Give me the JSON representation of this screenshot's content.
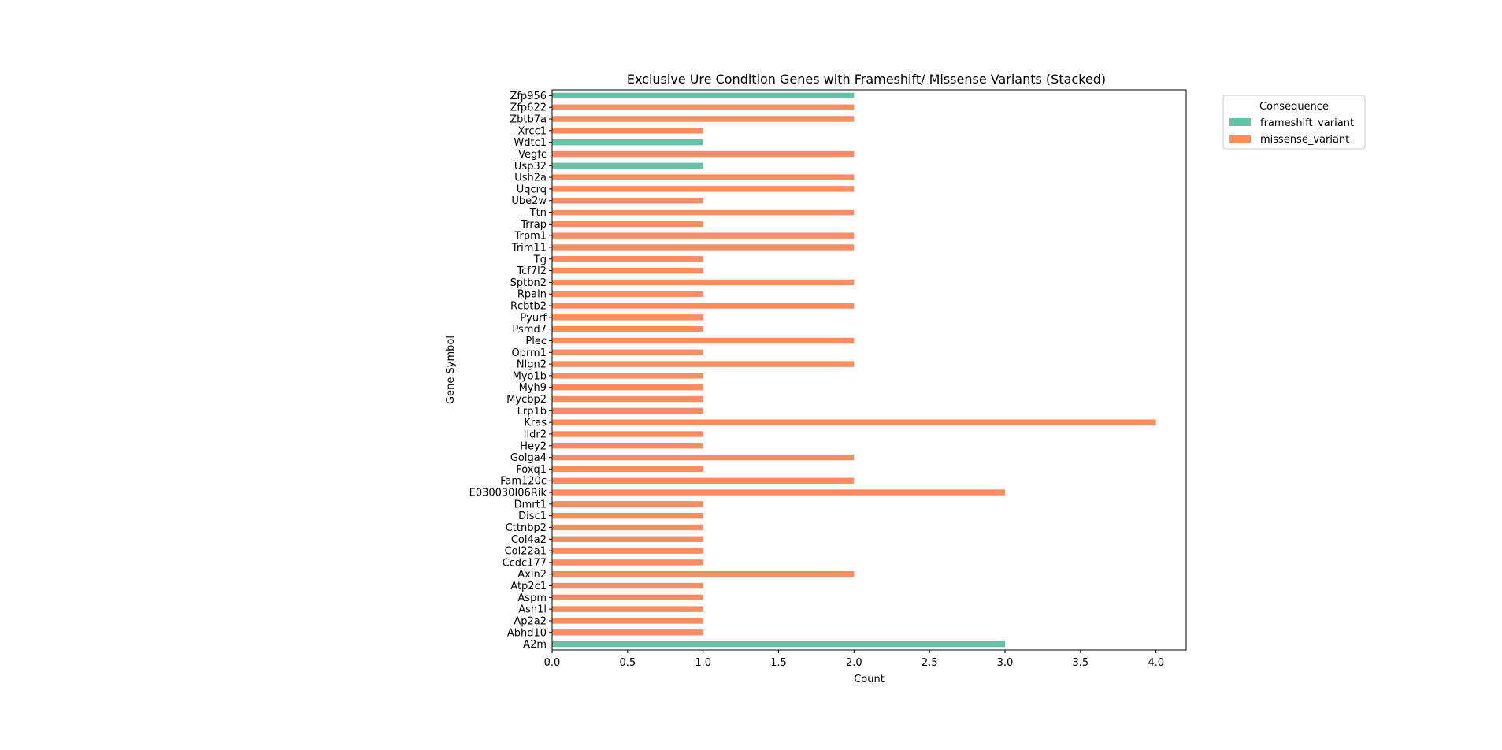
{
  "chart_data": {
    "type": "bar",
    "orientation": "horizontal",
    "stacked": true,
    "title": "Exclusive Ure Condition Genes with Frameshift/ Missense Variants (Stacked)",
    "xlabel": "Count",
    "ylabel": "Gene Symbol",
    "xlim": [
      0,
      4.2
    ],
    "xticks": [
      0.0,
      0.5,
      1.0,
      1.5,
      2.0,
      2.5,
      3.0,
      3.5,
      4.0
    ],
    "xtick_labels": [
      "0.0",
      "0.5",
      "1.0",
      "1.5",
      "2.0",
      "2.5",
      "3.0",
      "3.5",
      "4.0"
    ],
    "grid": false,
    "legend": {
      "title": "Consequence",
      "placement": "upper-right-outside"
    },
    "categories": [
      "A2m",
      "Abhd10",
      "Ap2a2",
      "Ash1l",
      "Aspm",
      "Atp2c1",
      "Axin2",
      "Ccdc177",
      "Col22a1",
      "Col4a2",
      "Cttnbp2",
      "Disc1",
      "Dmrt1",
      "E030030I06Rik",
      "Fam120c",
      "Foxq1",
      "Golga4",
      "Hey2",
      "Ildr2",
      "Kras",
      "Lrp1b",
      "Mycbp2",
      "Myh9",
      "Myo1b",
      "Nlgn2",
      "Oprm1",
      "Plec",
      "Psmd7",
      "Pyurf",
      "Rcbtb2",
      "Rpain",
      "Sptbn2",
      "Tcf7l2",
      "Tg",
      "Trim11",
      "Trpm1",
      "Trrap",
      "Ttn",
      "Ube2w",
      "Uqcrq",
      "Ush2a",
      "Usp32",
      "Vegfc",
      "Wdtc1",
      "Xrcc1",
      "Zbtb7a",
      "Zfp622",
      "Zfp956"
    ],
    "series": [
      {
        "name": "frameshift_variant",
        "color": "#66c2a5",
        "values": [
          3,
          0,
          0,
          0,
          0,
          0,
          0,
          0,
          0,
          0,
          0,
          0,
          0,
          0,
          0,
          0,
          0,
          0,
          0,
          0,
          0,
          0,
          0,
          0,
          0,
          0,
          0,
          0,
          0,
          0,
          0,
          0,
          0,
          0,
          0,
          0,
          0,
          0,
          0,
          0,
          0,
          1,
          0,
          1,
          0,
          0,
          0,
          2
        ]
      },
      {
        "name": "missense_variant",
        "color": "#fc8d62",
        "values": [
          0,
          1,
          1,
          1,
          1,
          1,
          2,
          1,
          1,
          1,
          1,
          1,
          1,
          3,
          2,
          1,
          2,
          1,
          1,
          4,
          1,
          1,
          1,
          1,
          2,
          1,
          2,
          1,
          1,
          2,
          1,
          2,
          1,
          1,
          2,
          2,
          1,
          2,
          1,
          2,
          2,
          0,
          2,
          0,
          1,
          2,
          2,
          0
        ]
      }
    ]
  }
}
